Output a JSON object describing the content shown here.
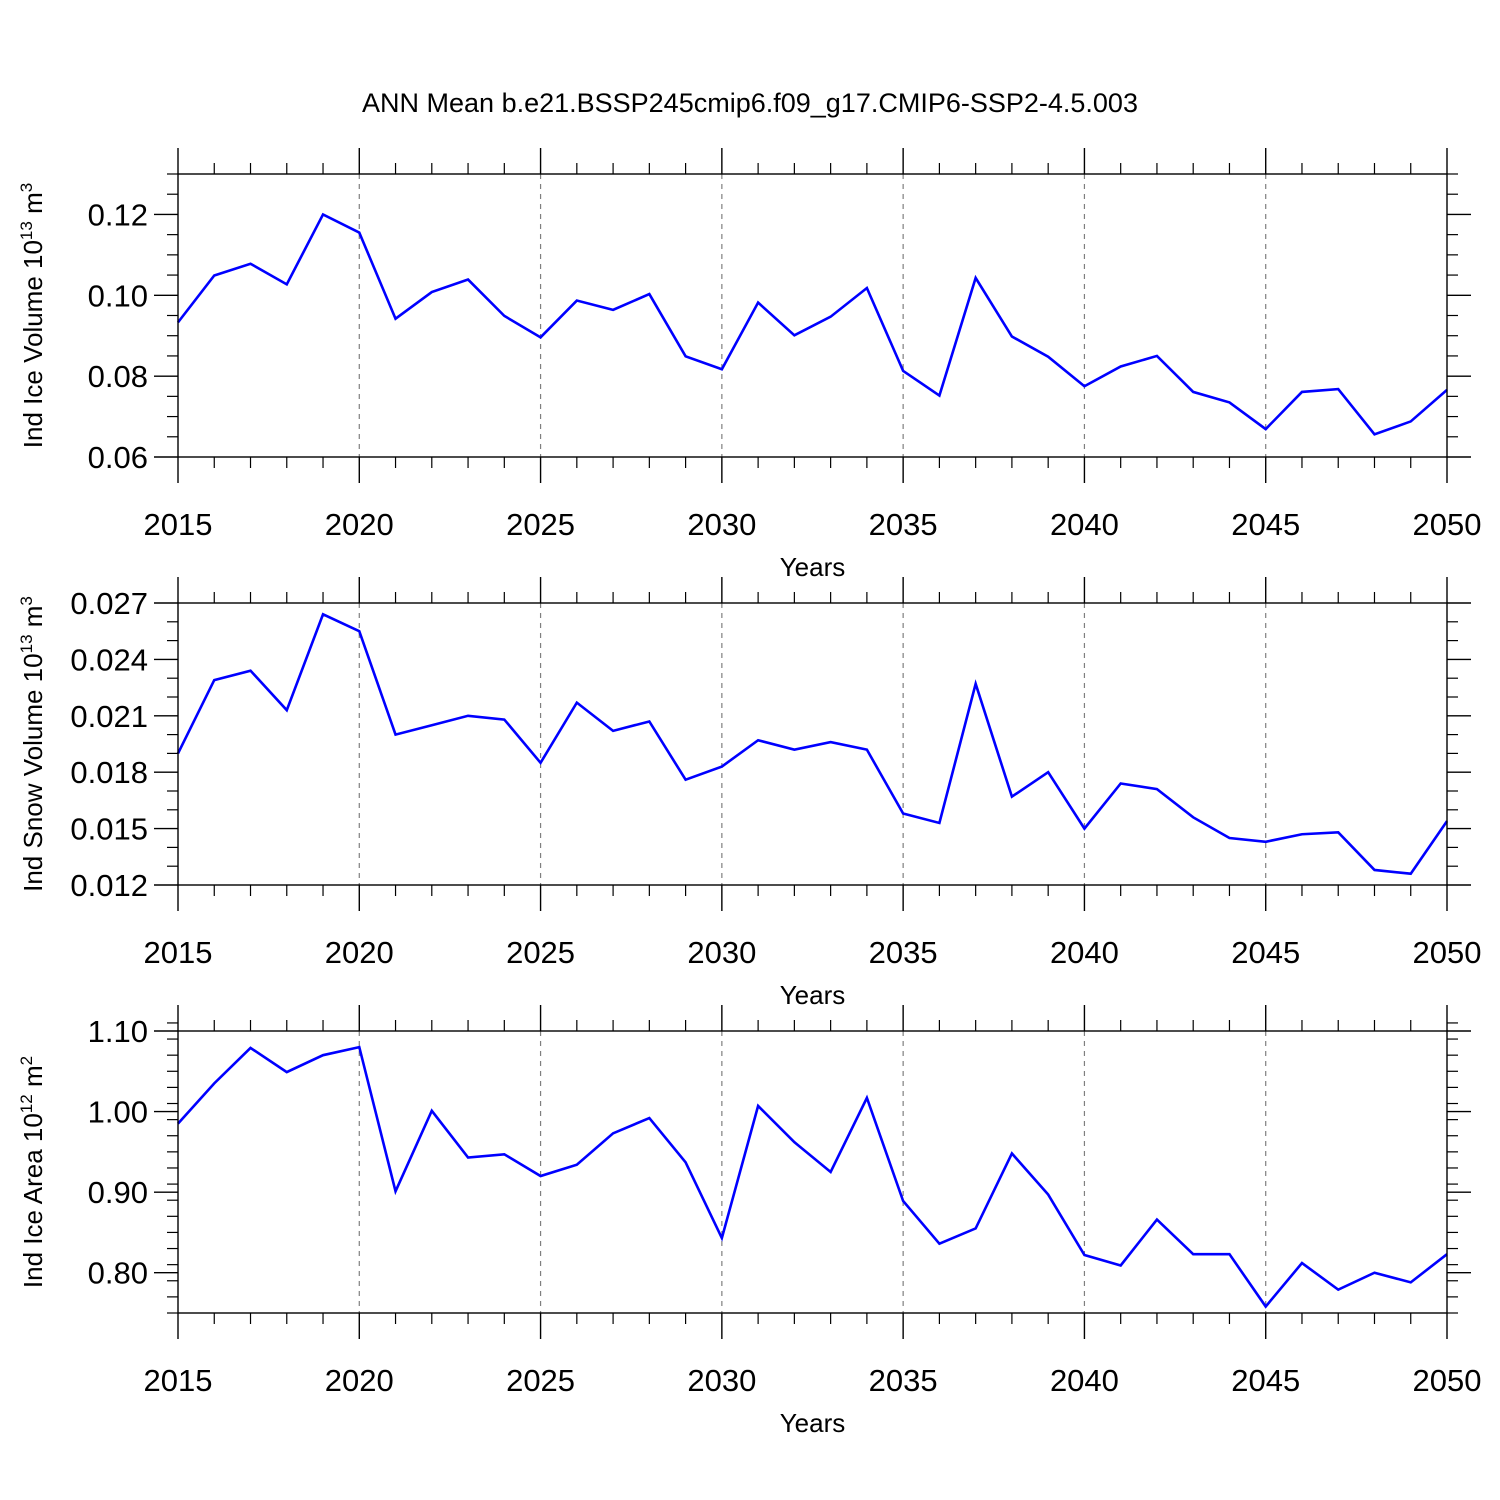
{
  "title": "ANN Mean b.e21.BSSP245cmip6.f09_g17.CMIP6-SSP2-4.5.003",
  "line_color": "#0000ff",
  "chart_data": [
    {
      "type": "line",
      "ylabel": "Ind Ice Volume",
      "yunit_base": "10",
      "yunit_exp": "13",
      "yunit_sym": "m",
      "yunit_pow": "3",
      "xlabel": "Years",
      "xlim": [
        2015,
        2050
      ],
      "ylim": [
        0.06,
        0.13
      ],
      "x_ticks": [
        2015,
        2020,
        2025,
        2030,
        2035,
        2040,
        2045,
        2050
      ],
      "x_tick_labels": [
        "2015",
        "2020",
        "2025",
        "2030",
        "2035",
        "2040",
        "2045",
        "2050"
      ],
      "y_ticks": [
        0.06,
        0.08,
        0.1,
        0.12
      ],
      "y_tick_labels": [
        "0.06",
        "0.08",
        "0.10",
        "0.12"
      ],
      "y_minor_step": 0.005,
      "x": [
        2015,
        2016,
        2017,
        2018,
        2019,
        2020,
        2021,
        2022,
        2023,
        2024,
        2025,
        2026,
        2027,
        2028,
        2029,
        2030,
        2031,
        2032,
        2033,
        2034,
        2035,
        2036,
        2037,
        2038,
        2039,
        2040,
        2041,
        2042,
        2043,
        2044,
        2045,
        2046,
        2047,
        2048,
        2049,
        2050
      ],
      "y": [
        0.0933,
        0.1049,
        0.1078,
        0.1027,
        0.12,
        0.1155,
        0.0942,
        0.1008,
        0.1039,
        0.0949,
        0.0896,
        0.0987,
        0.0964,
        0.1003,
        0.0849,
        0.0817,
        0.0982,
        0.0901,
        0.0947,
        0.1018,
        0.0813,
        0.0752,
        0.1043,
        0.0898,
        0.0848,
        0.0775,
        0.0824,
        0.085,
        0.0761,
        0.0735,
        0.0669,
        0.0761,
        0.0768,
        0.0656,
        0.0688,
        0.0766
      ]
    },
    {
      "type": "line",
      "ylabel": "Ind Snow Volume",
      "yunit_base": "10",
      "yunit_exp": "13",
      "yunit_sym": "m",
      "yunit_pow": "3",
      "xlabel": "Years",
      "xlim": [
        2015,
        2050
      ],
      "ylim": [
        0.012,
        0.027
      ],
      "x_ticks": [
        2015,
        2020,
        2025,
        2030,
        2035,
        2040,
        2045,
        2050
      ],
      "x_tick_labels": [
        "2015",
        "2020",
        "2025",
        "2030",
        "2035",
        "2040",
        "2045",
        "2050"
      ],
      "y_ticks": [
        0.012,
        0.015,
        0.018,
        0.021,
        0.024,
        0.027
      ],
      "y_tick_labels": [
        "0.012",
        "0.015",
        "0.018",
        "0.021",
        "0.024",
        "0.027"
      ],
      "y_minor_step": 0.001,
      "x": [
        2015,
        2016,
        2017,
        2018,
        2019,
        2020,
        2021,
        2022,
        2023,
        2024,
        2025,
        2026,
        2027,
        2028,
        2029,
        2030,
        2031,
        2032,
        2033,
        2034,
        2035,
        2036,
        2037,
        2038,
        2039,
        2040,
        2041,
        2042,
        2043,
        2044,
        2045,
        2046,
        2047,
        2048,
        2049,
        2050
      ],
      "y": [
        0.019,
        0.0229,
        0.0234,
        0.0213,
        0.0264,
        0.0255,
        0.02,
        0.0205,
        0.021,
        0.0208,
        0.0185,
        0.0217,
        0.0202,
        0.0207,
        0.0176,
        0.0183,
        0.0197,
        0.0192,
        0.0196,
        0.0192,
        0.0158,
        0.0153,
        0.0227,
        0.0167,
        0.018,
        0.015,
        0.0174,
        0.0171,
        0.0156,
        0.0145,
        0.0143,
        0.0147,
        0.0148,
        0.0128,
        0.0126,
        0.0154
      ]
    },
    {
      "type": "line",
      "ylabel": "Ind Ice Area",
      "yunit_base": "10",
      "yunit_exp": "12",
      "yunit_sym": "m",
      "yunit_pow": "2",
      "xlabel": "Years",
      "xlim": [
        2015,
        2050
      ],
      "ylim": [
        0.75,
        1.1
      ],
      "x_ticks": [
        2015,
        2020,
        2025,
        2030,
        2035,
        2040,
        2045,
        2050
      ],
      "x_tick_labels": [
        "2015",
        "2020",
        "2025",
        "2030",
        "2035",
        "2040",
        "2045",
        "2050"
      ],
      "y_ticks": [
        0.8,
        0.9,
        1.0,
        1.1
      ],
      "y_tick_labels": [
        "0.80",
        "0.90",
        "1.00",
        "1.10"
      ],
      "y_minor_step": 0.02,
      "x": [
        2015,
        2016,
        2017,
        2018,
        2019,
        2020,
        2021,
        2022,
        2023,
        2024,
        2025,
        2026,
        2027,
        2028,
        2029,
        2030,
        2031,
        2032,
        2033,
        2034,
        2035,
        2036,
        2037,
        2038,
        2039,
        2040,
        2041,
        2042,
        2043,
        2044,
        2045,
        2046,
        2047,
        2048,
        2049,
        2050
      ],
      "y": [
        0.985,
        1.035,
        1.079,
        1.049,
        1.07,
        1.08,
        0.901,
        1.001,
        0.943,
        0.947,
        0.92,
        0.934,
        0.973,
        0.992,
        0.937,
        0.843,
        1.007,
        0.962,
        0.925,
        1.017,
        0.889,
        0.836,
        0.855,
        0.948,
        0.897,
        0.822,
        0.809,
        0.866,
        0.823,
        0.823,
        0.758,
        0.812,
        0.779,
        0.8,
        0.788,
        0.823
      ]
    }
  ]
}
